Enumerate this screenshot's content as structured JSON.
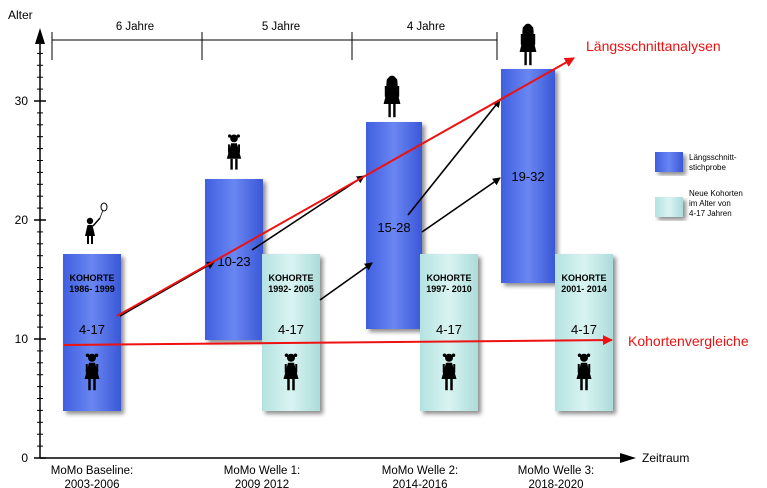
{
  "axes": {
    "y_label": "Alter",
    "x_label": "Zeitraum",
    "y_ticks": [
      "0",
      "10",
      "20",
      "30"
    ]
  },
  "periods": [
    {
      "label": "6 Jahre"
    },
    {
      "label": "5 Jahre"
    },
    {
      "label": "4 Jahre"
    }
  ],
  "waves": [
    {
      "line1": "MoMo Baseline:",
      "line2": "2003-2006"
    },
    {
      "line1": "MoMo Welle 1:",
      "line2": "2009 2012"
    },
    {
      "line1": "MoMo Welle 2:",
      "line2": "2014-2016"
    },
    {
      "line1": "MoMo Welle 3:",
      "line2": "2018-2020"
    }
  ],
  "cohort_bars": [
    {
      "title1": "KOHORTE",
      "title2": "1986- 1999",
      "age": "4-17",
      "color": "#4f6fe8"
    },
    {
      "title1": "KOHORTE",
      "title2": "1992- 2005",
      "age": "4-17",
      "color": "#c4ecea"
    },
    {
      "title1": "KOHORTE",
      "title2": "1997- 2010",
      "age": "4-17",
      "color": "#c4ecea"
    },
    {
      "title1": "KOHORTE",
      "title2": "2001- 2014",
      "age": "4-17",
      "color": "#c4ecea"
    }
  ],
  "longitudinal_bars": [
    {
      "age": "10-23",
      "color": "#4f6fe8"
    },
    {
      "age": "15-28",
      "color": "#4f6fe8"
    },
    {
      "age": "19-32",
      "color": "#4f6fe8"
    }
  ],
  "annotations": {
    "laengsschnitt": "Längsschnittanalysen",
    "kohorten": "Kohortenvergleiche"
  },
  "legend": [
    {
      "line1": "Längsschnitt-",
      "line2": "stichprobe",
      "line3": "",
      "color": "#4f6fe8"
    },
    {
      "line1": "Neue Kohorten",
      "line2": "im Alter von",
      "line3": "4-17 Jahren",
      "color": "#c4ecea"
    }
  ],
  "colors": {
    "accent": "#ee1111",
    "dark_blue": "#4f6fe8",
    "light_cyan": "#c4ecea"
  },
  "icons": [
    "child-with-balloon-icon",
    "girl-icon",
    "woman-icon"
  ]
}
